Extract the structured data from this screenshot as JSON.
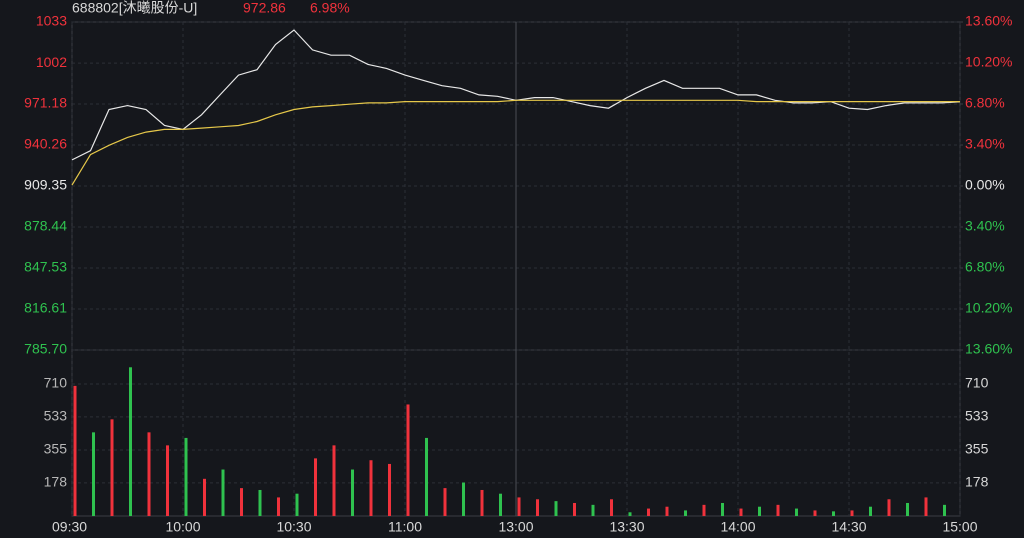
{
  "chart_data": [
    {
      "type": "line",
      "title": "688802[沐曦股份-U]",
      "last_price": "972.86",
      "change": "6.98%",
      "x": [
        0,
        5,
        10,
        15,
        20,
        25,
        30,
        35,
        40,
        45,
        50,
        55,
        60,
        65,
        70,
        75,
        80,
        85,
        90,
        95,
        100,
        105,
        110,
        115,
        120,
        125,
        130,
        135,
        140,
        145,
        150,
        155,
        160,
        165,
        170,
        175,
        180,
        185,
        190,
        195,
        200,
        205,
        210,
        215,
        220,
        225,
        230,
        235,
        240
      ],
      "xlim": [
        0,
        240
      ],
      "series": [
        {
          "color": "#e8e8e8",
          "values": [
            929,
            936,
            967,
            970,
            967,
            955,
            952,
            963,
            978,
            993,
            997,
            1016,
            1027,
            1012,
            1008,
            1008,
            1001,
            998,
            993,
            989,
            985,
            983,
            978,
            977,
            974,
            976,
            976,
            973,
            970,
            968,
            976,
            983,
            989,
            983,
            983,
            983,
            978,
            978,
            974,
            972,
            972,
            973,
            968,
            967,
            970,
            972,
            972,
            972,
            972.86
          ]
        },
        {
          "color": "#e6c84a",
          "values": [
            910,
            933,
            940,
            946,
            950,
            952,
            952,
            953,
            954,
            955,
            958,
            963,
            967,
            969,
            970,
            971,
            972,
            972,
            973,
            973,
            973,
            973,
            973,
            973,
            974,
            974,
            974,
            974,
            974,
            974,
            974,
            974,
            974,
            974,
            974,
            974,
            974,
            973,
            973,
            973,
            973,
            973,
            973,
            973,
            973,
            973,
            973,
            973,
            973
          ]
        }
      ],
      "ylim": [
        785.7,
        1033
      ],
      "yticks": [
        1033,
        1002,
        971.18,
        940.26,
        909.35,
        878.44,
        847.53,
        816.61,
        {
          "value": 785.7,
          "label": "785.70"
        }
      ],
      "y2lim": [
        -13.6,
        13.6
      ],
      "y2ticks": [
        {
          "value": 13.6,
          "label": "13.60%"
        },
        {
          "value": 10.2,
          "label": "10.20%"
        },
        {
          "value": 6.8,
          "label": "6.80%"
        },
        {
          "value": 3.4,
          "label": "3.40%"
        },
        {
          "value": 0,
          "label": "0.00%"
        },
        {
          "value": -3.4,
          "label": "3.40%"
        },
        {
          "value": -6.8,
          "label": "6.80%"
        },
        {
          "value": -10.2,
          "label": "10.20%"
        },
        {
          "value": -13.6,
          "label": "13.60%"
        }
      ],
      "up_color": "#f0323c",
      "down_color": "#2fc24f",
      "flat_color": "#e8e8e8",
      "grid": true
    },
    {
      "type": "bar",
      "x": [
        0,
        5,
        10,
        15,
        20,
        25,
        30,
        35,
        40,
        45,
        50,
        55,
        60,
        65,
        70,
        75,
        80,
        85,
        90,
        95,
        100,
        105,
        110,
        115,
        120,
        125,
        130,
        135,
        140,
        145,
        150,
        155,
        160,
        165,
        170,
        175,
        180,
        185,
        190,
        195,
        200,
        205,
        210,
        215,
        220,
        225,
        230,
        235
      ],
      "xlim": [
        0,
        240
      ],
      "xticks": [
        {
          "value": 0,
          "label": "09:30"
        },
        {
          "value": 30,
          "label": "10:00"
        },
        {
          "value": 60,
          "label": "10:30"
        },
        {
          "value": 90,
          "label": "11:00"
        },
        {
          "value": 120,
          "label": "13:00"
        },
        {
          "value": 150,
          "label": "13:30"
        },
        {
          "value": 180,
          "label": "14:00"
        },
        {
          "value": 210,
          "label": "14:30"
        },
        {
          "value": 240,
          "label": "15:00"
        }
      ],
      "series": [
        {
          "color": "#f0323c",
          "values": [
            700,
            null,
            520,
            null,
            450,
            380,
            null,
            200,
            null,
            150,
            null,
            100,
            null,
            310,
            380,
            null,
            300,
            280,
            600,
            null,
            150,
            null,
            140,
            null,
            100,
            90,
            null,
            70,
            null,
            90,
            null,
            40,
            50,
            null,
            60,
            null,
            40,
            null,
            60,
            null,
            30,
            null,
            30,
            null,
            90,
            null,
            100,
            null
          ]
        },
        {
          "color": "#2fc24f",
          "values": [
            null,
            450,
            null,
            800,
            null,
            null,
            420,
            null,
            250,
            null,
            140,
            null,
            120,
            null,
            null,
            250,
            null,
            null,
            null,
            420,
            null,
            180,
            null,
            120,
            null,
            null,
            80,
            null,
            60,
            null,
            20,
            null,
            null,
            30,
            null,
            70,
            null,
            50,
            null,
            40,
            null,
            25,
            null,
            50,
            null,
            70,
            null,
            60
          ]
        }
      ],
      "ylim": [
        0,
        893
      ],
      "yticks": [
        178,
        355,
        533,
        710
      ],
      "grid": true
    }
  ]
}
